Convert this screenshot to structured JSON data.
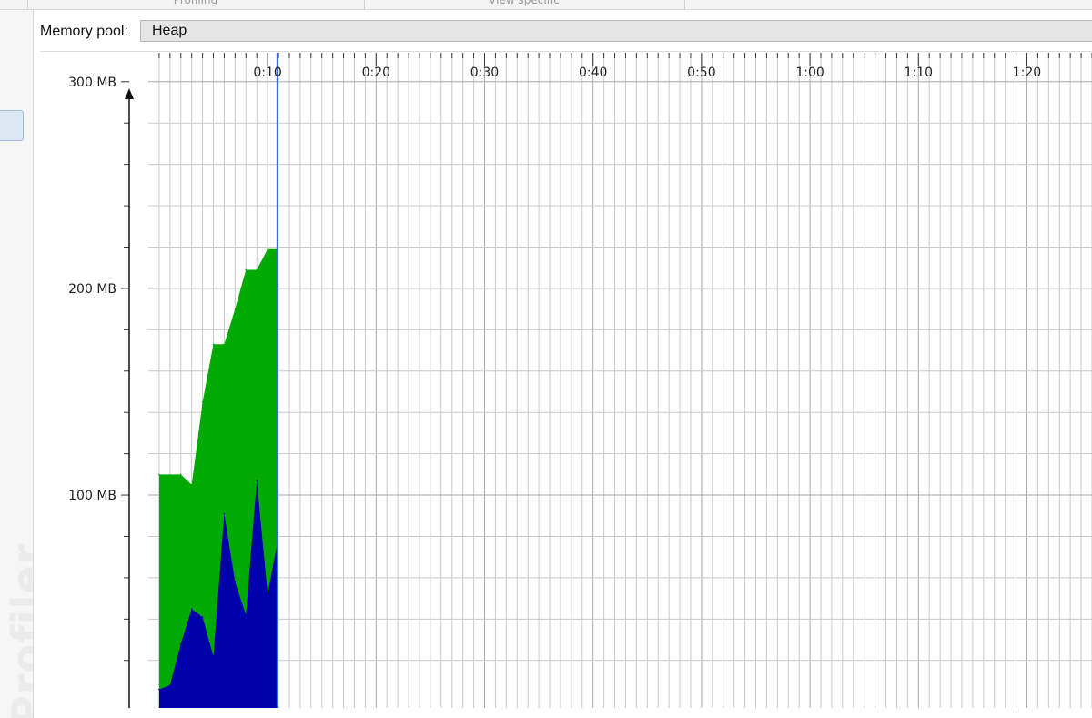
{
  "top_tabs": [
    "Profiling",
    "View specific"
  ],
  "left_panel": {
    "watermark": "Profiler"
  },
  "memory_pool": {
    "label": "Memory pool:",
    "value": "Heap"
  },
  "chart_data": {
    "type": "area",
    "title": "",
    "xlabel": "",
    "ylabel": "",
    "x_unit": "seconds",
    "xlim": [
      -1,
      86
    ],
    "ylim": [
      -3,
      314
    ],
    "grid": true,
    "x_ticks": [
      10,
      20,
      30,
      40,
      50,
      60,
      70,
      80
    ],
    "x_tick_labels": [
      "0:10",
      "0:20",
      "0:30",
      "0:40",
      "0:50",
      "1:00",
      "1:10",
      "1:20"
    ],
    "y_ticks": [
      100,
      200,
      300
    ],
    "y_tick_labels": [
      "100 MB",
      "200 MB",
      "300 MB"
    ],
    "current_time": 10.9,
    "colors": {
      "allocated": "#00aa00",
      "used": "#0000aa",
      "cursor": "#3366dd",
      "grid": "#b8b8b8"
    },
    "series": [
      {
        "name": "",
        "color": "#00aa00",
        "x": [
          0,
          2,
          3,
          4,
          5,
          6,
          7,
          8,
          9,
          10,
          10.9
        ],
        "values": [
          110,
          110,
          105,
          145,
          173,
          173,
          190,
          209,
          209,
          219,
          219
        ]
      },
      {
        "name": "",
        "color": "#0000aa",
        "x": [
          0,
          1,
          2,
          3,
          4,
          5,
          6,
          7,
          8,
          9,
          10,
          10.9
        ],
        "values": [
          6,
          8,
          28,
          45,
          41,
          22,
          91,
          58,
          42,
          107,
          52,
          77
        ]
      }
    ]
  }
}
